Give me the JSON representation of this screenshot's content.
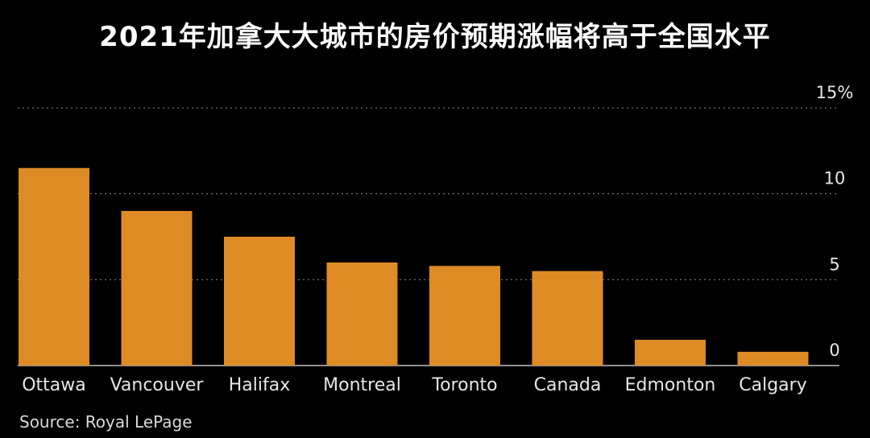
{
  "chart_data": {
    "type": "bar",
    "title": "2021年加拿大大城市的房价预期涨幅将高于全国水平",
    "categories": [
      "Ottawa",
      "Vancouver",
      "Halifax",
      "Montreal",
      "Toronto",
      "Canada",
      "Edmonton",
      "Calgary"
    ],
    "values": [
      11.5,
      9.0,
      7.5,
      6.0,
      5.8,
      5.5,
      1.5,
      0.8
    ],
    "ylim": [
      0,
      15
    ],
    "yticks": [
      {
        "value": 0,
        "label": "0"
      },
      {
        "value": 5,
        "label": "5"
      },
      {
        "value": 10,
        "label": "10"
      },
      {
        "value": 15,
        "label": "15%"
      }
    ],
    "grid": true,
    "bar_color": "#de8b26",
    "source": "Source: Royal LePage"
  }
}
